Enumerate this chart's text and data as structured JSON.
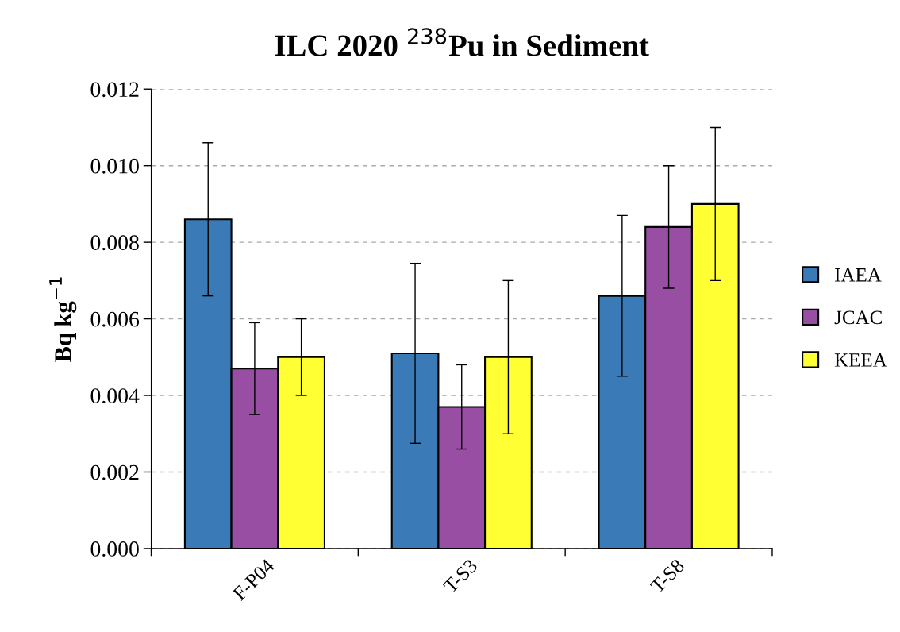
{
  "chart_data": {
    "type": "bar",
    "title": "ILC 2020 $^{238}$Pu in Sediment",
    "ylabel": "Bq kg$^{−1}$",
    "categories": [
      "F-P04",
      "T-S3",
      "T-S8"
    ],
    "series": [
      {
        "name": "IAEA",
        "color": "#3a7bb7",
        "values": [
          0.0086,
          0.0051,
          0.0066
        ],
        "errors": [
          0.002,
          0.00235,
          0.0021
        ]
      },
      {
        "name": "JCAC",
        "color": "#984ea3",
        "values": [
          0.0047,
          0.0037,
          0.0084
        ],
        "errors": [
          0.0012,
          0.0011,
          0.0016
        ]
      },
      {
        "name": "KEEA",
        "color": "#ffff33",
        "values": [
          0.005,
          0.005,
          0.009
        ],
        "errors": [
          0.001,
          0.002,
          0.002
        ]
      }
    ],
    "ylim": [
      0,
      0.012
    ],
    "yticks": [
      {
        "value": 0,
        "label": "0.000"
      },
      {
        "value": 0.002,
        "label": "0.002"
      },
      {
        "value": 0.004,
        "label": "0.004"
      },
      {
        "value": 0.006,
        "label": "0.006"
      },
      {
        "value": 0.008,
        "label": "0.008"
      },
      {
        "value": 0.01,
        "label": "0.010"
      },
      {
        "value": 0.012,
        "label": "0.012"
      }
    ],
    "grid": "y",
    "legend": "right"
  }
}
